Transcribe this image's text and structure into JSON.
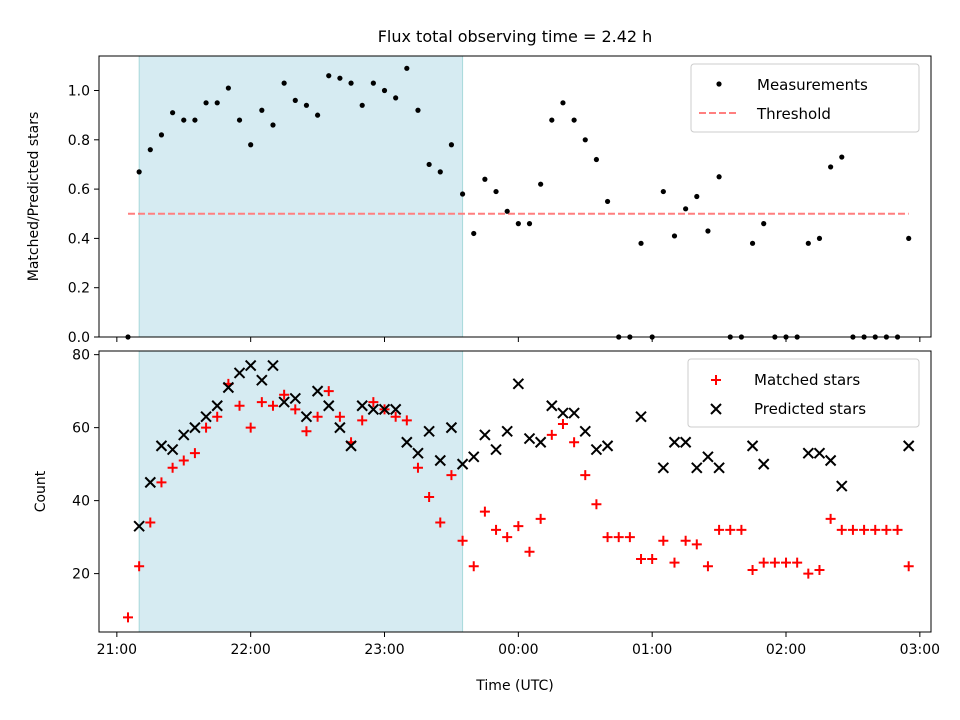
{
  "figure_title": "Flux total observing time = 2.42 h",
  "colors": {
    "shade": "#add8e6",
    "threshold": "#ff7f7f",
    "measurement": "#000000",
    "matched": "#ff0000",
    "predicted": "#000000"
  },
  "chart_data": [
    {
      "type": "scatter",
      "panel": "top",
      "xlabel": "",
      "ylabel": "Matched/Predicted stars",
      "xlim": [
        "20:52",
        "03:05"
      ],
      "ylim": [
        0.0,
        1.14
      ],
      "yticks": [
        0.0,
        0.2,
        0.4,
        0.6,
        0.8,
        1.0
      ],
      "grid": false,
      "legend_position": "top-right",
      "legend": [
        "Measurements",
        "Threshold"
      ],
      "shaded_interval": [
        "21:10",
        "23:35"
      ],
      "threshold": {
        "name": "Threshold",
        "value": 0.5,
        "x_range": [
          "21:05",
          "02:55"
        ]
      },
      "series": [
        {
          "name": "Measurements",
          "marker": "dot",
          "points": [
            [
              "21:05",
              0.0
            ],
            [
              "21:10",
              0.67
            ],
            [
              "21:15",
              0.76
            ],
            [
              "21:20",
              0.82
            ],
            [
              "21:25",
              0.91
            ],
            [
              "21:30",
              0.88
            ],
            [
              "21:35",
              0.88
            ],
            [
              "21:40",
              0.95
            ],
            [
              "21:45",
              0.95
            ],
            [
              "21:50",
              1.01
            ],
            [
              "21:55",
              0.88
            ],
            [
              "22:00",
              0.78
            ],
            [
              "22:05",
              0.92
            ],
            [
              "22:10",
              0.86
            ],
            [
              "22:15",
              1.03
            ],
            [
              "22:20",
              0.96
            ],
            [
              "22:25",
              0.94
            ],
            [
              "22:30",
              0.9
            ],
            [
              "22:35",
              1.06
            ],
            [
              "22:40",
              1.05
            ],
            [
              "22:45",
              1.03
            ],
            [
              "22:50",
              0.94
            ],
            [
              "22:55",
              1.03
            ],
            [
              "23:00",
              1.0
            ],
            [
              "23:05",
              0.97
            ],
            [
              "23:10",
              1.09
            ],
            [
              "23:15",
              0.92
            ],
            [
              "23:20",
              0.7
            ],
            [
              "23:25",
              0.67
            ],
            [
              "23:30",
              0.78
            ],
            [
              "23:35",
              0.58
            ],
            [
              "23:40",
              0.42
            ],
            [
              "23:45",
              0.64
            ],
            [
              "23:50",
              0.59
            ],
            [
              "23:55",
              0.51
            ],
            [
              "00:00",
              0.46
            ],
            [
              "00:05",
              0.46
            ],
            [
              "00:10",
              0.62
            ],
            [
              "00:15",
              0.88
            ],
            [
              "00:20",
              0.95
            ],
            [
              "00:25",
              0.88
            ],
            [
              "00:30",
              0.8
            ],
            [
              "00:35",
              0.72
            ],
            [
              "00:40",
              0.55
            ],
            [
              "00:45",
              0.0
            ],
            [
              "00:50",
              0.0
            ],
            [
              "00:55",
              0.38
            ],
            [
              "01:00",
              0.0
            ],
            [
              "01:05",
              0.59
            ],
            [
              "01:10",
              0.41
            ],
            [
              "01:15",
              0.52
            ],
            [
              "01:20",
              0.57
            ],
            [
              "01:25",
              0.43
            ],
            [
              "01:30",
              0.65
            ],
            [
              "01:35",
              0.0
            ],
            [
              "01:40",
              0.0
            ],
            [
              "01:45",
              0.38
            ],
            [
              "01:50",
              0.46
            ],
            [
              "01:55",
              0.0
            ],
            [
              "02:00",
              0.0
            ],
            [
              "02:05",
              0.0
            ],
            [
              "02:10",
              0.38
            ],
            [
              "02:15",
              0.4
            ],
            [
              "02:20",
              0.69
            ],
            [
              "02:25",
              0.73
            ],
            [
              "02:30",
              0.0
            ],
            [
              "02:35",
              0.0
            ],
            [
              "02:40",
              0.0
            ],
            [
              "02:45",
              0.0
            ],
            [
              "02:50",
              0.0
            ],
            [
              "02:55",
              0.4
            ]
          ]
        }
      ]
    },
    {
      "type": "scatter",
      "panel": "bottom",
      "xlabel": "Time (UTC)",
      "ylabel": "Count",
      "xlim": [
        "20:52",
        "03:05"
      ],
      "ylim": [
        4,
        81
      ],
      "yticks": [
        20,
        40,
        60,
        80
      ],
      "xticks": [
        "21:00",
        "22:00",
        "23:00",
        "00:00",
        "01:00",
        "02:00",
        "03:00"
      ],
      "grid": false,
      "legend_position": "top-right",
      "legend": [
        "Matched stars",
        "Predicted stars"
      ],
      "shaded_interval": [
        "21:10",
        "23:35"
      ],
      "series": [
        {
          "name": "Matched stars",
          "marker": "plus",
          "points": [
            [
              "21:05",
              8
            ],
            [
              "21:10",
              22
            ],
            [
              "21:15",
              34
            ],
            [
              "21:20",
              45
            ],
            [
              "21:25",
              49
            ],
            [
              "21:30",
              51
            ],
            [
              "21:35",
              53
            ],
            [
              "21:40",
              60
            ],
            [
              "21:45",
              63
            ],
            [
              "21:50",
              72
            ],
            [
              "21:55",
              66
            ],
            [
              "22:00",
              60
            ],
            [
              "22:05",
              67
            ],
            [
              "22:10",
              66
            ],
            [
              "22:15",
              69
            ],
            [
              "22:20",
              65
            ],
            [
              "22:25",
              59
            ],
            [
              "22:30",
              63
            ],
            [
              "22:35",
              70
            ],
            [
              "22:40",
              63
            ],
            [
              "22:45",
              56
            ],
            [
              "22:50",
              62
            ],
            [
              "22:55",
              67
            ],
            [
              "23:00",
              65
            ],
            [
              "23:05",
              63
            ],
            [
              "23:10",
              62
            ],
            [
              "23:15",
              49
            ],
            [
              "23:20",
              41
            ],
            [
              "23:25",
              34
            ],
            [
              "23:30",
              47
            ],
            [
              "23:35",
              29
            ],
            [
              "23:40",
              22
            ],
            [
              "23:45",
              37
            ],
            [
              "23:50",
              32
            ],
            [
              "23:55",
              30
            ],
            [
              "00:00",
              33
            ],
            [
              "00:05",
              26
            ],
            [
              "00:10",
              35
            ],
            [
              "00:15",
              58
            ],
            [
              "00:20",
              61
            ],
            [
              "00:25",
              56
            ],
            [
              "00:30",
              47
            ],
            [
              "00:35",
              39
            ],
            [
              "00:40",
              30
            ],
            [
              "00:45",
              30
            ],
            [
              "00:50",
              30
            ],
            [
              "00:55",
              24
            ],
            [
              "01:00",
              24
            ],
            [
              "01:05",
              29
            ],
            [
              "01:10",
              23
            ],
            [
              "01:15",
              29
            ],
            [
              "01:20",
              28
            ],
            [
              "01:25",
              22
            ],
            [
              "01:30",
              32
            ],
            [
              "01:35",
              32
            ],
            [
              "01:40",
              32
            ],
            [
              "01:45",
              21
            ],
            [
              "01:50",
              23
            ],
            [
              "01:55",
              23
            ],
            [
              "02:00",
              23
            ],
            [
              "02:05",
              23
            ],
            [
              "02:10",
              20
            ],
            [
              "02:15",
              21
            ],
            [
              "02:20",
              35
            ],
            [
              "02:25",
              32
            ],
            [
              "02:30",
              32
            ],
            [
              "02:35",
              32
            ],
            [
              "02:40",
              32
            ],
            [
              "02:45",
              32
            ],
            [
              "02:50",
              32
            ],
            [
              "02:55",
              22
            ]
          ]
        },
        {
          "name": "Predicted stars",
          "marker": "x",
          "points": [
            [
              "21:10",
              33
            ],
            [
              "21:15",
              45
            ],
            [
              "21:20",
              55
            ],
            [
              "21:25",
              54
            ],
            [
              "21:30",
              58
            ],
            [
              "21:35",
              60
            ],
            [
              "21:40",
              63
            ],
            [
              "21:45",
              66
            ],
            [
              "21:50",
              71
            ],
            [
              "21:55",
              75
            ],
            [
              "22:00",
              77
            ],
            [
              "22:05",
              73
            ],
            [
              "22:10",
              77
            ],
            [
              "22:15",
              67
            ],
            [
              "22:20",
              68
            ],
            [
              "22:25",
              63
            ],
            [
              "22:30",
              70
            ],
            [
              "22:35",
              66
            ],
            [
              "22:40",
              60
            ],
            [
              "22:45",
              55
            ],
            [
              "22:50",
              66
            ],
            [
              "22:55",
              65
            ],
            [
              "23:00",
              65
            ],
            [
              "23:05",
              65
            ],
            [
              "23:10",
              56
            ],
            [
              "23:15",
              53
            ],
            [
              "23:20",
              59
            ],
            [
              "23:25",
              51
            ],
            [
              "23:30",
              60
            ],
            [
              "23:35",
              50
            ],
            [
              "23:40",
              52
            ],
            [
              "23:45",
              58
            ],
            [
              "23:50",
              54
            ],
            [
              "23:55",
              59
            ],
            [
              "00:00",
              72
            ],
            [
              "00:05",
              57
            ],
            [
              "00:10",
              56
            ],
            [
              "00:15",
              66
            ],
            [
              "00:20",
              64
            ],
            [
              "00:25",
              64
            ],
            [
              "00:30",
              59
            ],
            [
              "00:35",
              54
            ],
            [
              "00:40",
              55
            ],
            [
              "00:55",
              63
            ],
            [
              "01:05",
              49
            ],
            [
              "01:10",
              56
            ],
            [
              "01:15",
              56
            ],
            [
              "01:20",
              49
            ],
            [
              "01:25",
              52
            ],
            [
              "01:30",
              49
            ],
            [
              "01:45",
              55
            ],
            [
              "01:50",
              50
            ],
            [
              "02:10",
              53
            ],
            [
              "02:15",
              53
            ],
            [
              "02:20",
              51
            ],
            [
              "02:25",
              44
            ],
            [
              "02:55",
              55
            ]
          ]
        }
      ]
    }
  ]
}
